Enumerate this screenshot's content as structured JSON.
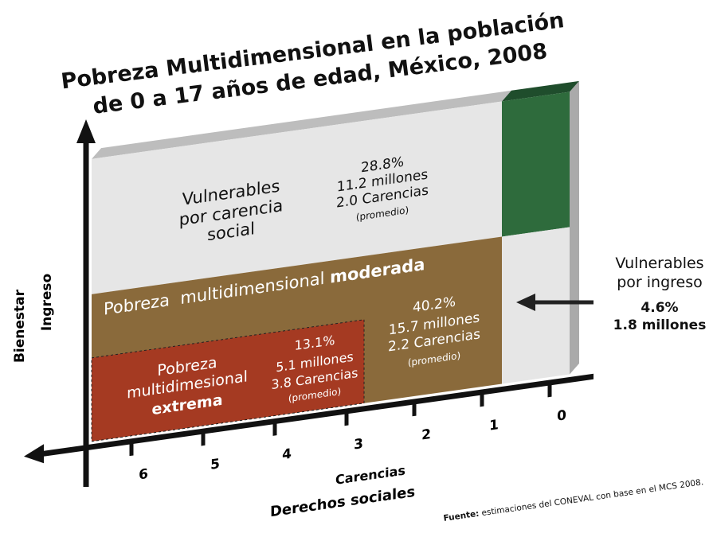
{
  "title": {
    "lines": [
      "Pobreza Multidimensional en la población",
      "de 0 a 17 años de edad, México, 2008"
    ]
  },
  "regions": {
    "vulnerable_social": {
      "label": [
        "Vulnerables",
        "por carencia",
        "social"
      ],
      "stats": [
        "28.8%",
        "11.2 millones",
        "2.0 Carencias",
        "(promedio)"
      ]
    },
    "moderate": {
      "label": "Pobreza  multidimensional ",
      "label_bold": "moderada",
      "stats": [
        "40.2%",
        "15.7 millones",
        "2.2 Carencias",
        "(promedio)"
      ]
    },
    "extreme": {
      "label": [
        "Pobreza",
        "multidimesional"
      ],
      "label_bold": "extrema",
      "stats": [
        "13.1%",
        "5.1 millones",
        "3.8 Carencias",
        "(promedio)"
      ]
    },
    "vulnerable_income": {
      "label": [
        "Vulnerables",
        "por ingreso"
      ],
      "stats": [
        "4.6%",
        "1.8 millones"
      ]
    }
  },
  "axes": {
    "y_labels": [
      "Bienestar",
      "Ingreso"
    ],
    "x_labels": [
      "Carencias",
      "Derechos sociales"
    ],
    "x_ticks": [
      "6",
      "5",
      "4",
      "3",
      "2",
      "1",
      "0"
    ]
  },
  "source": {
    "bold": "Fuente:",
    "text": " estimaciones del CONEVAL con base en el MCS 2008."
  }
}
